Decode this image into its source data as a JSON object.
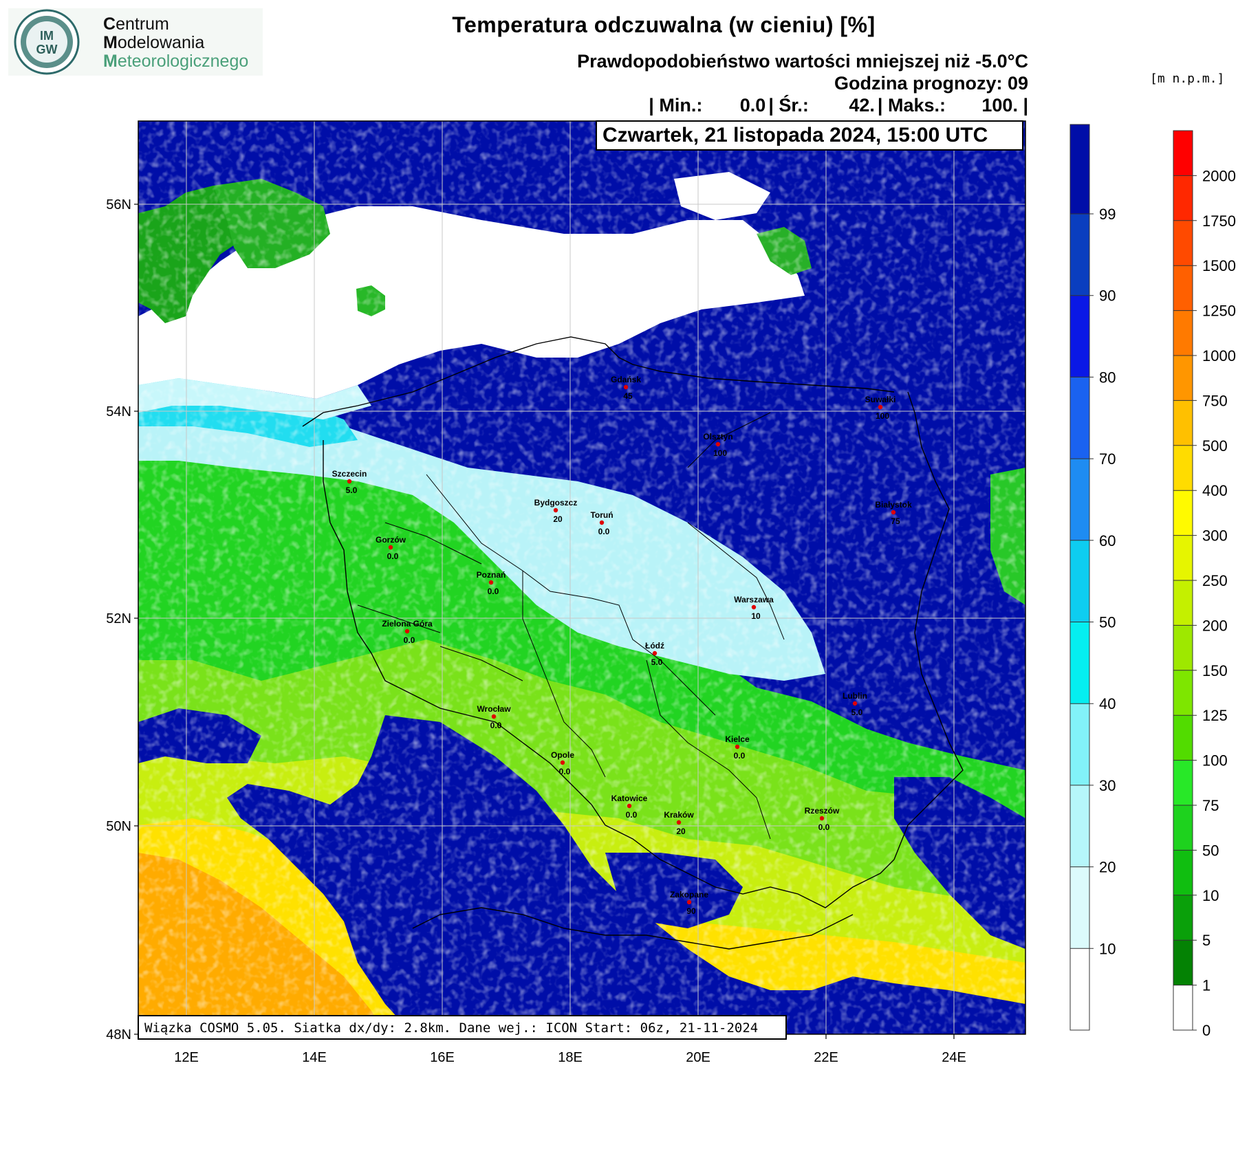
{
  "header": {
    "title": "Temperatura odczuwalna (w cieniu) [%]",
    "subtitle": "Prawdopodobieństwo wartości mniejszej niż -5.0°C",
    "forecast_hour": "Godzina prognozy: 09",
    "stats": {
      "min_label": "| Min.:",
      "min_value": "0.0",
      "avg_label": "| Śr.:",
      "avg_value": "42.",
      "max_label": "| Maks.:",
      "max_value": "100. |"
    },
    "date": "Czwartek, 21 listopada 2024, 15:00 UTC"
  },
  "logo": {
    "badge": "IMGW",
    "line1_first": "C",
    "line1_rest": "entrum",
    "line2_first": "M",
    "line2_rest": "odelowania",
    "line3_first": "M",
    "line3_rest": "eteorologicznego"
  },
  "footer": "Wiązka COSMO 5.05. Siatka dx/dy: 2.8km. Dane wej.: ICON Start: 06z, 21-11-2024",
  "map": {
    "lat_labels": [
      "56N",
      "54N",
      "52N",
      "50N",
      "48N"
    ],
    "lon_labels": [
      "12E",
      "14E",
      "16E",
      "18E",
      "20E",
      "22E",
      "24E"
    ],
    "cities": [
      {
        "name": "Gdańsk",
        "value": "45"
      },
      {
        "name": "Suwałki",
        "value": "100"
      },
      {
        "name": "Olsztyn",
        "value": "100"
      },
      {
        "name": "Szczecin",
        "value": "5.0"
      },
      {
        "name": "Bydgoszcz",
        "value": "20"
      },
      {
        "name": "Toruń",
        "value": "0.0"
      },
      {
        "name": "Białystok",
        "value": "75"
      },
      {
        "name": "Gorzów",
        "value": "0.0"
      },
      {
        "name": "Poznań",
        "value": "0.0"
      },
      {
        "name": "Warszawa",
        "value": "10"
      },
      {
        "name": "Zielona Góra",
        "value": "0.0"
      },
      {
        "name": "Łódź",
        "value": "5.0"
      },
      {
        "name": "Lublin",
        "value": "5.0"
      },
      {
        "name": "Wrocław",
        "value": "0.0"
      },
      {
        "name": "Kielce",
        "value": "0.0"
      },
      {
        "name": "Opole",
        "value": "0.0"
      },
      {
        "name": "Katowice",
        "value": "0.0"
      },
      {
        "name": "Kraków",
        "value": "20"
      },
      {
        "name": "Rzeszów",
        "value": "0.0"
      },
      {
        "name": "Zakopane",
        "value": "90"
      }
    ]
  },
  "prob_legend": {
    "labels": [
      "99",
      "90",
      "80",
      "70",
      "60",
      "50",
      "40",
      "30",
      "20",
      "10"
    ],
    "colors": [
      "#000ea8",
      "#0a3ebf",
      "#0a18e6",
      "#1a62f0",
      "#1e8cf2",
      "#0ecdf0",
      "#05eef0",
      "#82f2f8",
      "#b6f6fa",
      "#dcfbfc"
    ]
  },
  "terrain_legend": {
    "unit": "[m n.p.m.]",
    "labels": [
      "2000",
      "1750",
      "1500",
      "1250",
      "1000",
      "750",
      "500",
      "400",
      "300",
      "250",
      "200",
      "150",
      "125",
      "100",
      "75",
      "50",
      "10",
      "5",
      "1",
      "0"
    ],
    "colors": [
      "#ff0000",
      "#ff2800",
      "#ff4a00",
      "#ff6000",
      "#ff7a00",
      "#ff9600",
      "#ffc000",
      "#ffdc00",
      "#fffa00",
      "#e6f500",
      "#c4f000",
      "#9ee800",
      "#7ee600",
      "#52dc00",
      "#28e828",
      "#1ed21e",
      "#10be10",
      "#0aa00a",
      "#048204",
      "#ffffff"
    ]
  }
}
